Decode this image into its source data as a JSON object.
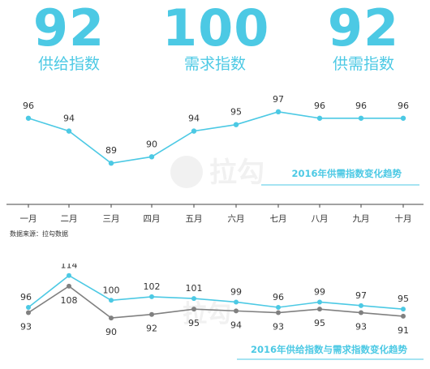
{
  "stats": [
    {
      "value": "92",
      "label": "供给指数"
    },
    {
      "value": "100",
      "label": "需求指数"
    },
    {
      "value": "92",
      "label": "供需指数"
    }
  ],
  "source_note": "数据来源：拉勾数据",
  "watermark_text": "拉勾",
  "colors": {
    "accent": "#4cc9e4",
    "series_gray": "#808080"
  },
  "chart_data": [
    {
      "type": "line",
      "title": "2016年供需指数变化趋势",
      "categories": [
        "一月",
        "二月",
        "三月",
        "四月",
        "五月",
        "六月",
        "七月",
        "八月",
        "九月",
        "十月"
      ],
      "series": [
        {
          "values": [
            96,
            94,
            89,
            90,
            94,
            95,
            97,
            96,
            96,
            96
          ],
          "color": "#4cc9e4"
        }
      ],
      "ylim": [
        86,
        99
      ],
      "grid": false,
      "data_labels": true
    },
    {
      "type": "line",
      "title": "2016年供给指数与需求指数变化趋势",
      "series": [
        {
          "values": [
            96,
            114,
            100,
            102,
            101,
            99,
            96,
            99,
            97,
            95
          ],
          "color": "#4cc9e4"
        },
        {
          "values": [
            93,
            108,
            90,
            92,
            95,
            94,
            93,
            95,
            93,
            91
          ],
          "color": "#808080"
        }
      ],
      "grid": false,
      "data_labels": true
    }
  ]
}
